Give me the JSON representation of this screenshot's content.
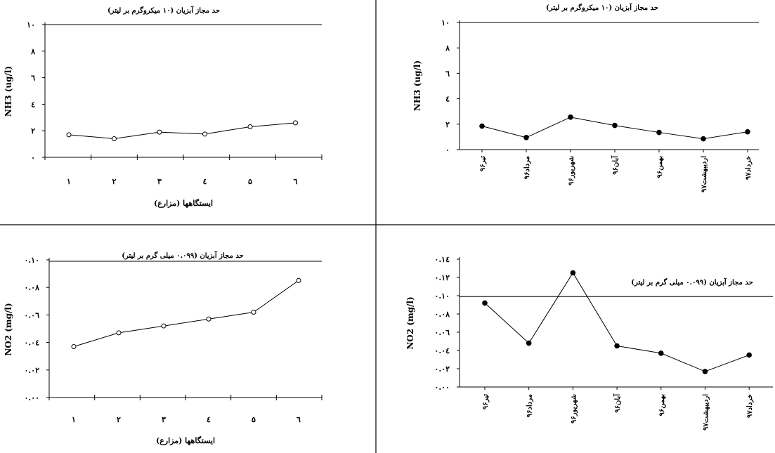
{
  "chart_data": [
    {
      "type": "line",
      "panel": "top-left",
      "ylabel": "NH3 (ug/l)",
      "xlabel": "ایستگاهها (مزارع)",
      "categories": [
        "۱",
        "۲",
        "۳",
        "٤",
        "۵",
        "٦"
      ],
      "values": [
        1.7,
        1.4,
        1.9,
        1.75,
        2.3,
        2.6
      ],
      "ylim": [
        0,
        10
      ],
      "yticks": [
        0,
        2,
        4,
        6,
        8,
        10
      ],
      "ytick_labels": [
        "۰",
        "۲",
        "٤",
        "٦",
        "۸",
        "۱۰"
      ],
      "marker": "open-circle",
      "limit_line": {
        "value": 10,
        "label": "حد مجاز آبزیان (۱۰ میکروگرم بر لیتر)"
      }
    },
    {
      "type": "line",
      "panel": "top-right",
      "ylabel": "NH3 (ug/l)",
      "xlabel": "",
      "categories": [
        "تیر۹۶",
        "مرداد۹۶",
        "شهریور۹۶",
        "آبان۹۶",
        "بهمن۹۶",
        "اردیبهشت۹۷",
        "خرداد۹۷"
      ],
      "values": [
        1.85,
        0.95,
        2.55,
        1.9,
        1.35,
        0.85,
        1.4
      ],
      "ylim": [
        0,
        10
      ],
      "yticks": [
        0,
        2,
        4,
        6,
        8,
        10
      ],
      "ytick_labels": [
        "۰",
        "۲",
        "٤",
        "٦",
        "۸",
        "۱۰"
      ],
      "marker": "filled-circle",
      "limit_line": {
        "value": 10,
        "label": "حد مجاز آبزیان (۱۰ میکروگرم بر لیتر)"
      }
    },
    {
      "type": "line",
      "panel": "bottom-left",
      "ylabel": "NO2 (mg/l)",
      "xlabel": "ایستگاهها (مزارع)",
      "categories": [
        "۱",
        "۲",
        "۳",
        "٤",
        "۵",
        "٦"
      ],
      "values": [
        0.037,
        0.047,
        0.052,
        0.057,
        0.062,
        0.085
      ],
      "ylim": [
        0,
        0.1
      ],
      "yticks": [
        0,
        0.02,
        0.04,
        0.06,
        0.08,
        0.1
      ],
      "ytick_labels": [
        "۰.۰۰",
        "۰.۰۲",
        "۰.۰٤",
        "۰.۰٦",
        "۰.۰۸",
        "۰.۱۰"
      ],
      "marker": "open-circle",
      "limit_line": {
        "value": 0.099,
        "label": "حد مجاز آبزیان (۰.۰۹۹ میلی گرم بر لیتر)"
      }
    },
    {
      "type": "line",
      "panel": "bottom-right",
      "ylabel": "NO2 (mg/l)",
      "xlabel": "",
      "categories": [
        "تیر۹۶",
        "مرداد۹۶",
        "شهریور۹۶",
        "آبان۹۶",
        "بهمن۹۶",
        "اردیبهشت۹۷",
        "خرداد۹۷"
      ],
      "values": [
        0.092,
        0.048,
        0.125,
        0.045,
        0.037,
        0.017,
        0.035
      ],
      "ylim": [
        0,
        0.14
      ],
      "yticks": [
        0,
        0.02,
        0.04,
        0.06,
        0.08,
        0.1,
        0.12,
        0.14
      ],
      "ytick_labels": [
        "۰.۰۰",
        "۰.۰۲",
        "۰.۰٤",
        "۰.۰٦",
        "۰.۰۸",
        "۰.۱۰",
        "۰.۱۲",
        "۰.۱٤"
      ],
      "marker": "filled-circle",
      "limit_line": {
        "value": 0.099,
        "label": "حد مجاز آبزیان (۰.۰۹۹ میلی گرم بر لیتر)"
      }
    }
  ]
}
